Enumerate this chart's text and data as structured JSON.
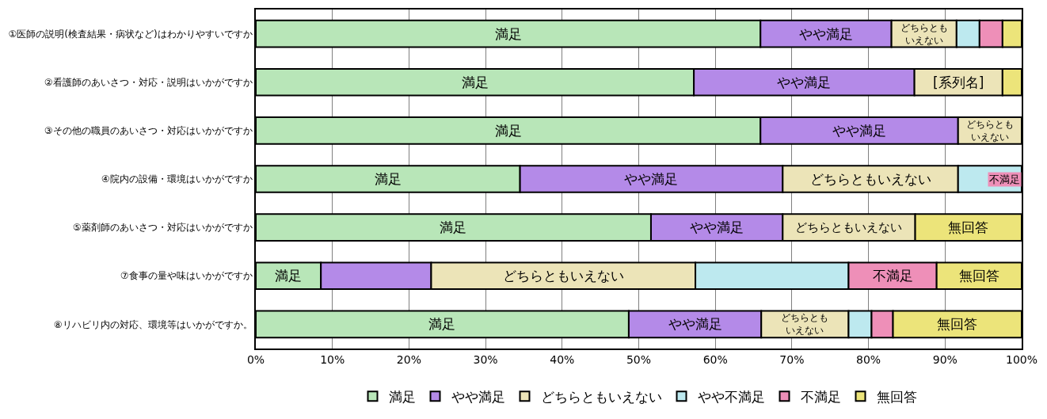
{
  "chart_data": {
    "type": "bar",
    "orientation": "horizontal",
    "stacked": true,
    "categories": [
      "①医師の説明(検査結果・病状など)はわかりやすいですか",
      "②看護師のあいさつ・対応・説明はいかがですか",
      "③その他の職員のあいさつ・対応はいかがですか",
      "④院内の設備・環境はいかがですか",
      "⑤薬剤師のあいさつ・対応はいかがですか",
      "⑦食事の量や味はいかがですか",
      "⑧リハビリ内の対応、環境等はいかがですか。"
    ],
    "series": [
      {
        "name": "満足",
        "color": "#b8e6b8",
        "values": [
          65.9,
          57.2,
          65.9,
          34.5,
          51.6,
          8.5,
          48.7
        ],
        "value_labels": [
          "満足",
          "満足",
          "満足",
          "満足",
          "満足",
          "満足",
          "満足"
        ]
      },
      {
        "name": "やや満足",
        "color": "#b48ae8",
        "values": [
          17.1,
          28.8,
          25.8,
          34.3,
          17.2,
          14.4,
          17.3
        ],
        "value_labels": [
          "やや満足",
          "やや満足",
          "やや満足",
          "やや満足",
          "やや満足",
          null,
          "やや満足"
        ]
      },
      {
        "name": "どちらともいえない",
        "color": "#ece4b8",
        "values": [
          8.5,
          11.5,
          8.3,
          22.9,
          17.3,
          34.5,
          11.4
        ],
        "value_labels": [
          "どちらともいえない",
          "[系列名]",
          "どちらともいえない",
          "どちらともいえない",
          "どちらともいえない",
          "どちらともいえない",
          "どちらともいえない"
        ]
      },
      {
        "name": "やや不満足",
        "color": "#bde9ef",
        "values": [
          3.0,
          0,
          0,
          8.3,
          0,
          20.0,
          3.0
        ],
        "value_labels": [
          null,
          null,
          null,
          null,
          null,
          null,
          null
        ]
      },
      {
        "name": "不満足",
        "color": "#ee8fb8",
        "values": [
          3.0,
          0,
          0,
          0,
          0,
          11.5,
          2.8
        ],
        "value_labels": [
          null,
          null,
          null,
          "不満足",
          null,
          "不満足",
          null
        ]
      },
      {
        "name": "無回答",
        "color": "#ece47a",
        "values": [
          2.5,
          2.5,
          0,
          0,
          13.9,
          11.1,
          16.8
        ],
        "value_labels": [
          null,
          null,
          null,
          null,
          "無回答",
          "無回答",
          "無回答"
        ]
      }
    ],
    "xlim": [
      0,
      100
    ],
    "xticks": [
      {
        "value": 0,
        "label": "0%"
      },
      {
        "value": 10,
        "label": "10%"
      },
      {
        "value": 20,
        "label": "20%"
      },
      {
        "value": 30,
        "label": "30%"
      },
      {
        "value": 40,
        "label": "40%"
      },
      {
        "value": 50,
        "label": "50%"
      },
      {
        "value": 60,
        "label": "60%"
      },
      {
        "value": 70,
        "label": "70%"
      },
      {
        "value": 80,
        "label": "80%"
      },
      {
        "value": 90,
        "label": "90%"
      },
      {
        "value": 100,
        "label": "100%"
      }
    ],
    "grid": "x",
    "legend": "bottom"
  }
}
